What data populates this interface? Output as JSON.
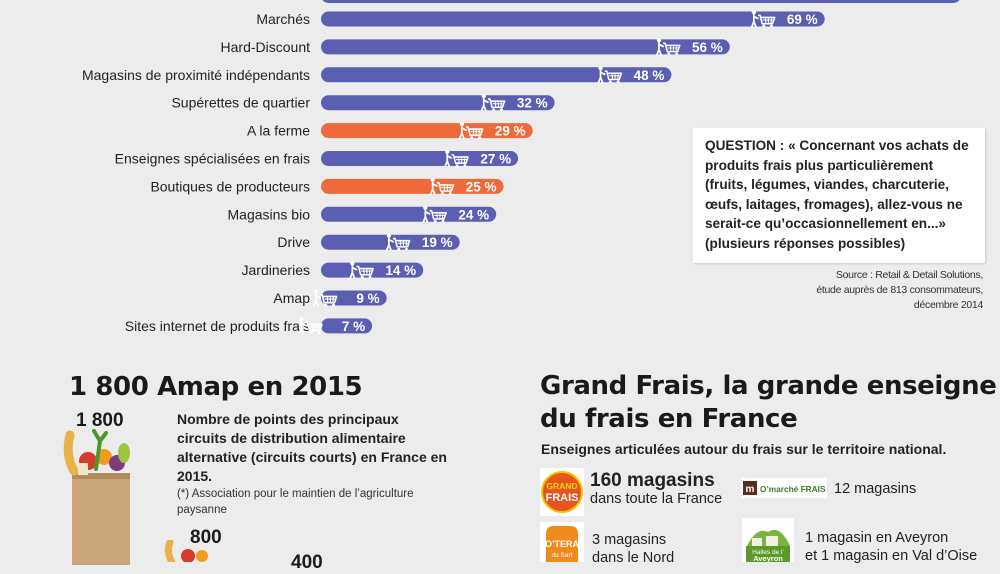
{
  "chart_data": {
    "type": "bar",
    "orientation": "horizontal",
    "categories": [
      "Marchés",
      "Hard-Discount",
      "Magasins de proximité indépendants",
      "Supérettes de quartier",
      "A la ferme",
      "Enseignes spécialisées en frais",
      "Boutiques de producteurs",
      "Magasins bio",
      "Drive",
      "Jardineries",
      "Amap",
      "Sites internet de produits frais"
    ],
    "values": [
      69,
      56,
      48,
      32,
      29,
      27,
      25,
      24,
      19,
      14,
      9,
      7
    ],
    "value_labels": [
      "69 %",
      "56 %",
      "48 %",
      "32 %",
      "29 %",
      "27 %",
      "25 %",
      "24 %",
      "19 %",
      "14 %",
      "9 %",
      "7 %"
    ],
    "highlighted": [
      "A la ferme",
      "Boutiques de producteurs"
    ],
    "top_bar_partial": true,
    "colors": {
      "default": "#5b5fb2",
      "highlight": "#ee6a3a",
      "label_text": "#ffffff"
    },
    "grid": false
  },
  "question": "QUESTION : « Concernant vos achats de produits frais plus particulièrement (fruits, légumes, viandes, charcuterie, œufs, laitages, fromages), allez-vous ne serait-ce qu’occasionnellement en...» (plusieurs réponses possibles)",
  "source": {
    "line1": "Source : Retail & Detail Solutions,",
    "line2": "étude auprès de 813 consommateurs,",
    "line3": "décembre 2014"
  },
  "amap": {
    "title": "1 800 Amap en 2015",
    "value_1800": "1 800",
    "description": "Nombre de points des principaux circuits de distribution alimentaire alternative (circuits courts) en France en 2015.",
    "note": "(*) Association pour le maintien de l’agriculture paysanne",
    "value_800": "800",
    "value_400": "400"
  },
  "grandfrais": {
    "title": "Grand Frais, la grande enseigne du frais en France",
    "subtitle": "Enseignes articulées autour du frais sur le territoire national.",
    "brands": [
      {
        "logo_text_line1": "GRAND",
        "logo_text_line2": "FRAIS",
        "big": "160 magasins",
        "text": "dans toute la France"
      },
      {
        "logo_text": "O’marché FRAIS",
        "text": "12 magasins"
      },
      {
        "logo_text_line1": "O’TERA",
        "logo_text_line2": "du Sart",
        "text_line1": "3 magasins",
        "text_line2": "dans le Nord"
      },
      {
        "logo_text_line1": "Halles de l’",
        "logo_text_line2": "Aveyron",
        "text_line1": "1 magasin en Aveyron",
        "text_line2": "et 1 magasin en Val d’Oise"
      }
    ]
  }
}
